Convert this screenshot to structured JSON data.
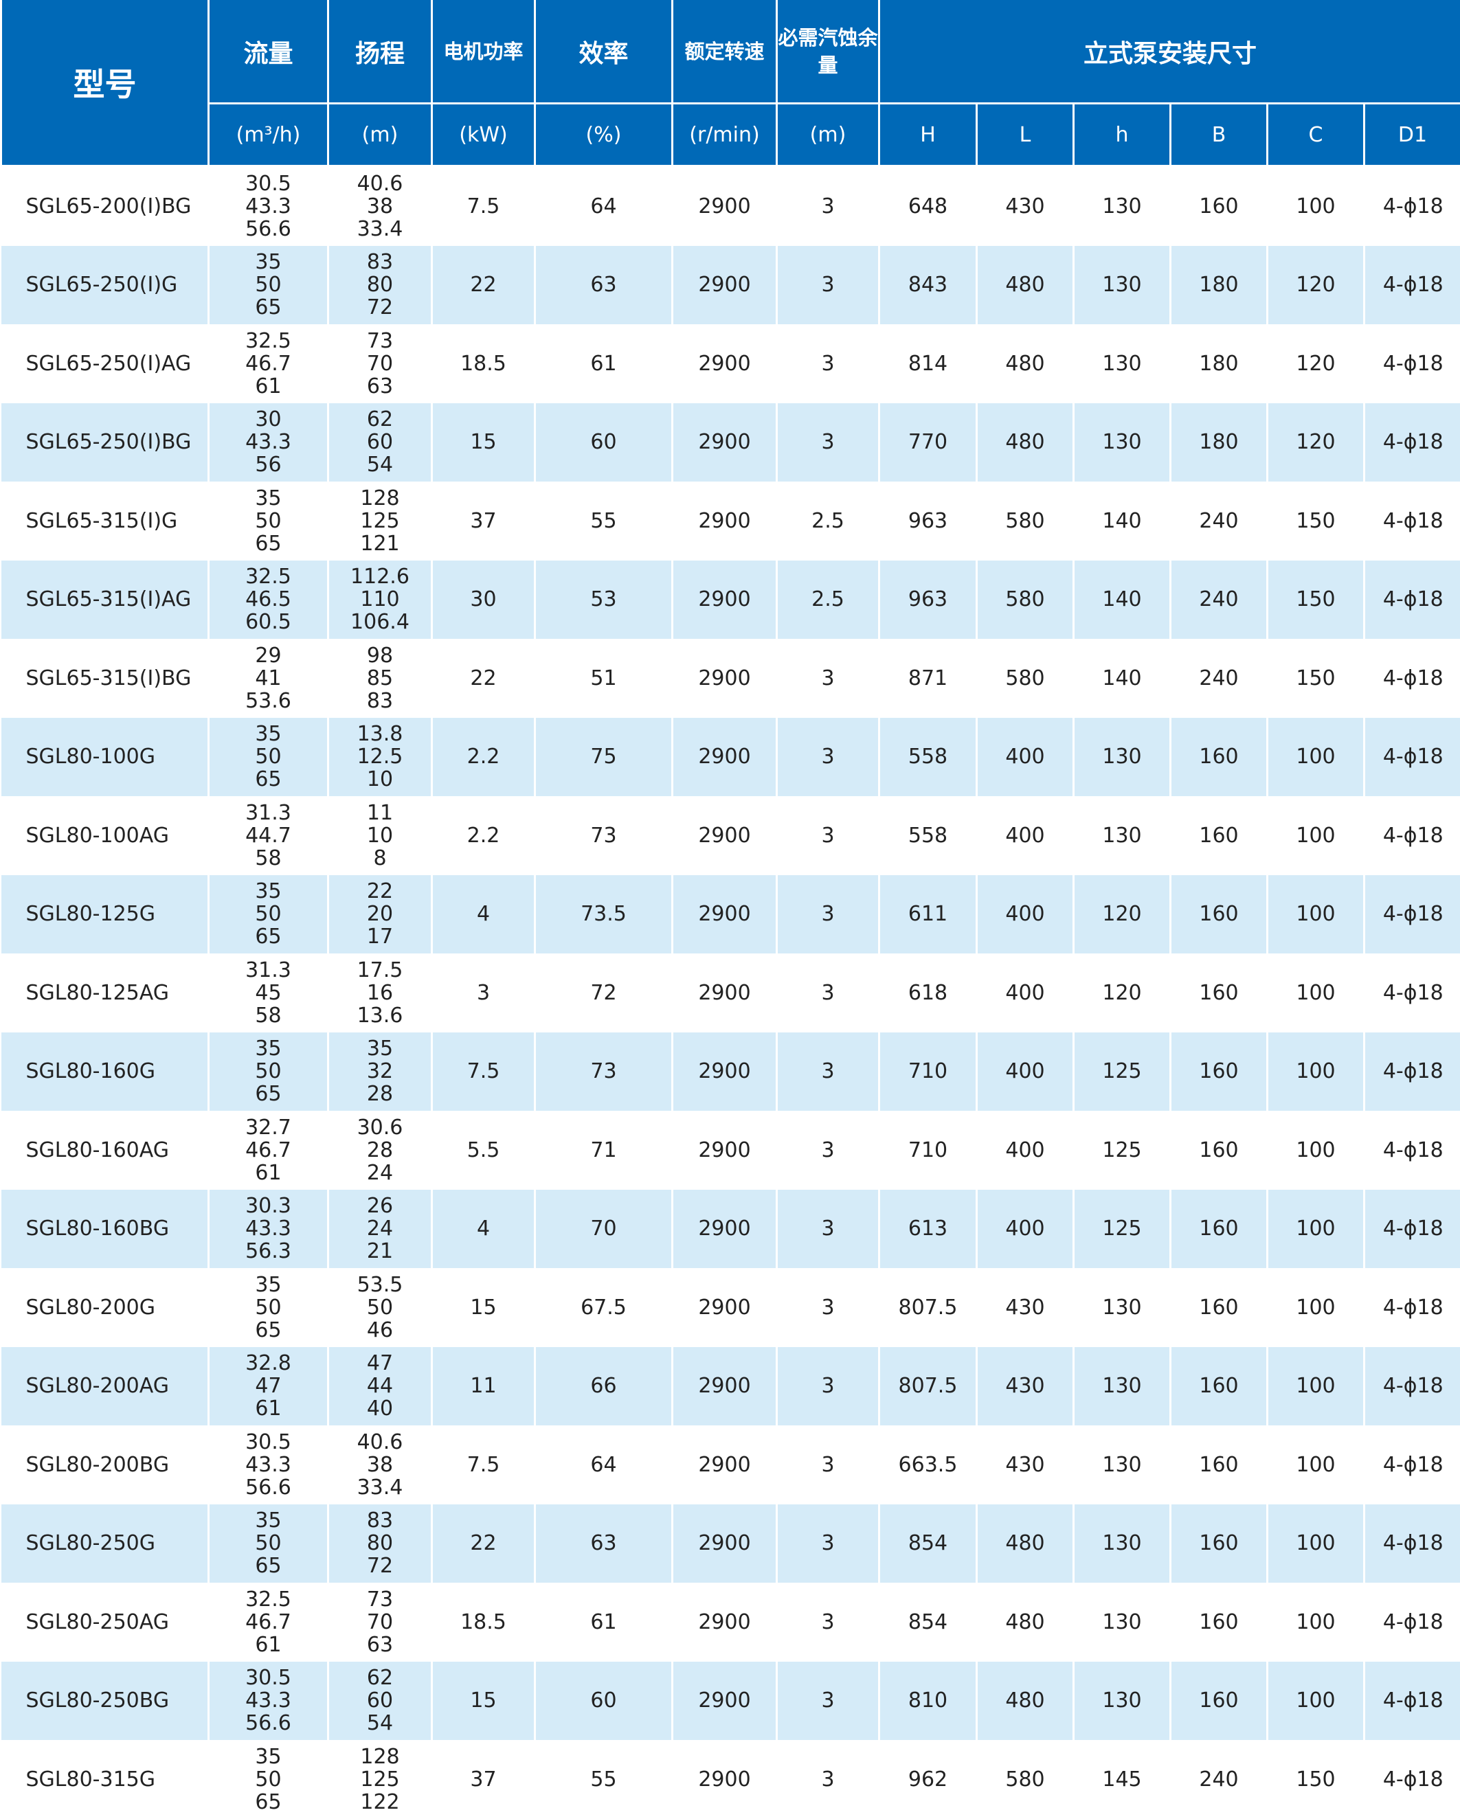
{
  "header": {
    "model": "型号",
    "cols": [
      {
        "label": "流量",
        "unit": "(m³/h)"
      },
      {
        "label": "扬程",
        "unit": "(m)"
      },
      {
        "label": "电机功率",
        "unit": "(kW)"
      },
      {
        "label": "效率",
        "unit": "(%)"
      },
      {
        "label": "额定转速",
        "unit": "(r/min)"
      },
      {
        "label": "必需汽蚀余量",
        "unit": "(m)"
      }
    ],
    "dim_group": "立式泵安装尺寸",
    "dims": [
      "H",
      "L",
      "h",
      "B",
      "C",
      "D1"
    ]
  },
  "rows": [
    {
      "model": "SGL65-200(I)BG",
      "flow": [
        "30.5",
        "43.3",
        "56.6"
      ],
      "head": [
        "40.6",
        "38",
        "33.4"
      ],
      "power": "7.5",
      "eff": "64",
      "speed": "2900",
      "npsh": "3",
      "H": "648",
      "L": "430",
      "h": "130",
      "B": "160",
      "C": "100",
      "D1": "4-ϕ18"
    },
    {
      "model": "SGL65-250(I)G",
      "flow": [
        "35",
        "50",
        "65"
      ],
      "head": [
        "83",
        "80",
        "72"
      ],
      "power": "22",
      "eff": "63",
      "speed": "2900",
      "npsh": "3",
      "H": "843",
      "L": "480",
      "h": "130",
      "B": "180",
      "C": "120",
      "D1": "4-ϕ18"
    },
    {
      "model": "SGL65-250(I)AG",
      "flow": [
        "32.5",
        "46.7",
        "61"
      ],
      "head": [
        "73",
        "70",
        "63"
      ],
      "power": "18.5",
      "eff": "61",
      "speed": "2900",
      "npsh": "3",
      "H": "814",
      "L": "480",
      "h": "130",
      "B": "180",
      "C": "120",
      "D1": "4-ϕ18"
    },
    {
      "model": "SGL65-250(I)BG",
      "flow": [
        "30",
        "43.3",
        "56"
      ],
      "head": [
        "62",
        "60",
        "54"
      ],
      "power": "15",
      "eff": "60",
      "speed": "2900",
      "npsh": "3",
      "H": "770",
      "L": "480",
      "h": "130",
      "B": "180",
      "C": "120",
      "D1": "4-ϕ18"
    },
    {
      "model": "SGL65-315(I)G",
      "flow": [
        "35",
        "50",
        "65"
      ],
      "head": [
        "128",
        "125",
        "121"
      ],
      "power": "37",
      "eff": "55",
      "speed": "2900",
      "npsh": "2.5",
      "H": "963",
      "L": "580",
      "h": "140",
      "B": "240",
      "C": "150",
      "D1": "4-ϕ18"
    },
    {
      "model": "SGL65-315(I)AG",
      "flow": [
        "32.5",
        "46.5",
        "60.5"
      ],
      "head": [
        "112.6",
        "110",
        "106.4"
      ],
      "power": "30",
      "eff": "53",
      "speed": "2900",
      "npsh": "2.5",
      "H": "963",
      "L": "580",
      "h": "140",
      "B": "240",
      "C": "150",
      "D1": "4-ϕ18"
    },
    {
      "model": "SGL65-315(I)BG",
      "flow": [
        "29",
        "41",
        "53.6"
      ],
      "head": [
        "98",
        "85",
        "83"
      ],
      "power": "22",
      "eff": "51",
      "speed": "2900",
      "npsh": "3",
      "H": "871",
      "L": "580",
      "h": "140",
      "B": "240",
      "C": "150",
      "D1": "4-ϕ18"
    },
    {
      "model": "SGL80-100G",
      "flow": [
        "35",
        "50",
        "65"
      ],
      "head": [
        "13.8",
        "12.5",
        "10"
      ],
      "power": "2.2",
      "eff": "75",
      "speed": "2900",
      "npsh": "3",
      "H": "558",
      "L": "400",
      "h": "130",
      "B": "160",
      "C": "100",
      "D1": "4-ϕ18"
    },
    {
      "model": "SGL80-100AG",
      "flow": [
        "31.3",
        "44.7",
        "58"
      ],
      "head": [
        "11",
        "10",
        "8"
      ],
      "power": "2.2",
      "eff": "73",
      "speed": "2900",
      "npsh": "3",
      "H": "558",
      "L": "400",
      "h": "130",
      "B": "160",
      "C": "100",
      "D1": "4-ϕ18"
    },
    {
      "model": "SGL80-125G",
      "flow": [
        "35",
        "50",
        "65"
      ],
      "head": [
        "22",
        "20",
        "17"
      ],
      "power": "4",
      "eff": "73.5",
      "speed": "2900",
      "npsh": "3",
      "H": "611",
      "L": "400",
      "h": "120",
      "B": "160",
      "C": "100",
      "D1": "4-ϕ18"
    },
    {
      "model": "SGL80-125AG",
      "flow": [
        "31.3",
        "45",
        "58"
      ],
      "head": [
        "17.5",
        "16",
        "13.6"
      ],
      "power": "3",
      "eff": "72",
      "speed": "2900",
      "npsh": "3",
      "H": "618",
      "L": "400",
      "h": "120",
      "B": "160",
      "C": "100",
      "D1": "4-ϕ18"
    },
    {
      "model": "SGL80-160G",
      "flow": [
        "35",
        "50",
        "65"
      ],
      "head": [
        "35",
        "32",
        "28"
      ],
      "power": "7.5",
      "eff": "73",
      "speed": "2900",
      "npsh": "3",
      "H": "710",
      "L": "400",
      "h": "125",
      "B": "160",
      "C": "100",
      "D1": "4-ϕ18"
    },
    {
      "model": "SGL80-160AG",
      "flow": [
        "32.7",
        "46.7",
        "61"
      ],
      "head": [
        "30.6",
        "28",
        "24"
      ],
      "power": "5.5",
      "eff": "71",
      "speed": "2900",
      "npsh": "3",
      "H": "710",
      "L": "400",
      "h": "125",
      "B": "160",
      "C": "100",
      "D1": "4-ϕ18"
    },
    {
      "model": "SGL80-160BG",
      "flow": [
        "30.3",
        "43.3",
        "56.3"
      ],
      "head": [
        "26",
        "24",
        "21"
      ],
      "power": "4",
      "eff": "70",
      "speed": "2900",
      "npsh": "3",
      "H": "613",
      "L": "400",
      "h": "125",
      "B": "160",
      "C": "100",
      "D1": "4-ϕ18"
    },
    {
      "model": "SGL80-200G",
      "flow": [
        "35",
        "50",
        "65"
      ],
      "head": [
        "53.5",
        "50",
        "46"
      ],
      "power": "15",
      "eff": "67.5",
      "speed": "2900",
      "npsh": "3",
      "H": "807.5",
      "L": "430",
      "h": "130",
      "B": "160",
      "C": "100",
      "D1": "4-ϕ18"
    },
    {
      "model": "SGL80-200AG",
      "flow": [
        "32.8",
        "47",
        "61"
      ],
      "head": [
        "47",
        "44",
        "40"
      ],
      "power": "11",
      "eff": "66",
      "speed": "2900",
      "npsh": "3",
      "H": "807.5",
      "L": "430",
      "h": "130",
      "B": "160",
      "C": "100",
      "D1": "4-ϕ18"
    },
    {
      "model": "SGL80-200BG",
      "flow": [
        "30.5",
        "43.3",
        "56.6"
      ],
      "head": [
        "40.6",
        "38",
        "33.4"
      ],
      "power": "7.5",
      "eff": "64",
      "speed": "2900",
      "npsh": "3",
      "H": "663.5",
      "L": "430",
      "h": "130",
      "B": "160",
      "C": "100",
      "D1": "4-ϕ18"
    },
    {
      "model": "SGL80-250G",
      "flow": [
        "35",
        "50",
        "65"
      ],
      "head": [
        "83",
        "80",
        "72"
      ],
      "power": "22",
      "eff": "63",
      "speed": "2900",
      "npsh": "3",
      "H": "854",
      "L": "480",
      "h": "130",
      "B": "160",
      "C": "100",
      "D1": "4-ϕ18"
    },
    {
      "model": "SGL80-250AG",
      "flow": [
        "32.5",
        "46.7",
        "61"
      ],
      "head": [
        "73",
        "70",
        "63"
      ],
      "power": "18.5",
      "eff": "61",
      "speed": "2900",
      "npsh": "3",
      "H": "854",
      "L": "480",
      "h": "130",
      "B": "160",
      "C": "100",
      "D1": "4-ϕ18"
    },
    {
      "model": "SGL80-250BG",
      "flow": [
        "30.5",
        "43.3",
        "56.6"
      ],
      "head": [
        "62",
        "60",
        "54"
      ],
      "power": "15",
      "eff": "60",
      "speed": "2900",
      "npsh": "3",
      "H": "810",
      "L": "480",
      "h": "130",
      "B": "160",
      "C": "100",
      "D1": "4-ϕ18"
    },
    {
      "model": "SGL80-315G",
      "flow": [
        "35",
        "50",
        "65"
      ],
      "head": [
        "128",
        "125",
        "122"
      ],
      "power": "37",
      "eff": "55",
      "speed": "2900",
      "npsh": "3",
      "H": "962",
      "L": "580",
      "h": "145",
      "B": "240",
      "C": "150",
      "D1": "4-ϕ18"
    }
  ],
  "colors": {
    "header": "#0069b7",
    "alt_row": "#d5ebf8"
  }
}
